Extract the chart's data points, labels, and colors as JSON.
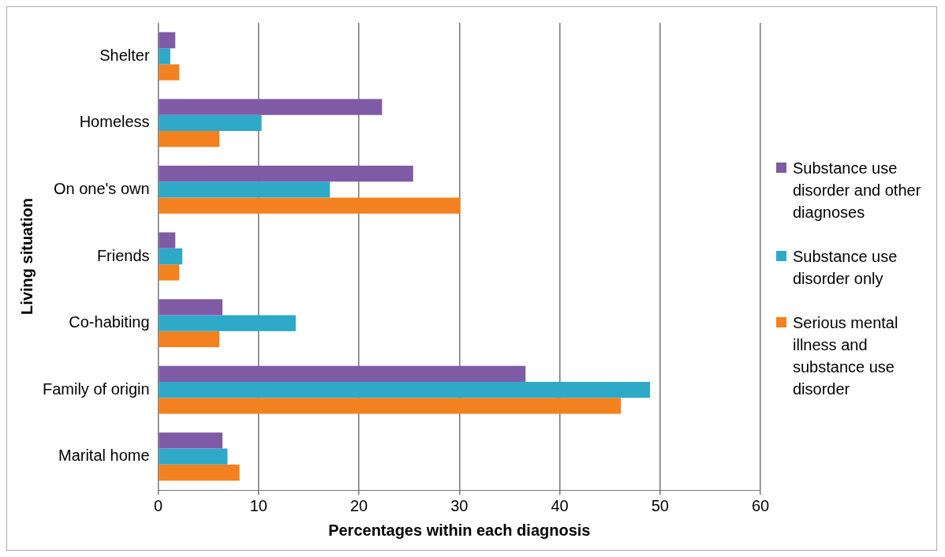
{
  "chart_data": {
    "type": "bar",
    "orientation": "horizontal",
    "xlabel": "Percentages within each diagnosis",
    "ylabel": "Living situation",
    "categories": [
      "Shelter",
      "Homeless",
      "On one's own",
      "Friends",
      "Co-habiting",
      "Family of origin",
      "Marital home"
    ],
    "series": [
      {
        "name": "Substance use disorder and other diagnoses",
        "color": "#7f5ba6",
        "values": [
          1.7,
          22.3,
          25.4,
          1.7,
          6.4,
          36.6,
          6.4
        ]
      },
      {
        "name": "Substance use disorder only",
        "color": "#2ea9c8",
        "values": [
          1.2,
          10.3,
          17.1,
          2.4,
          13.7,
          49.0,
          6.9
        ]
      },
      {
        "name": "Serious mental illness and substance use disorder",
        "color": "#f3811f",
        "values": [
          2.1,
          6.1,
          30.1,
          2.1,
          6.1,
          46.1,
          8.1
        ]
      }
    ],
    "xlim": [
      0,
      60
    ],
    "xticks": [
      0,
      10,
      20,
      30,
      40,
      50,
      60
    ],
    "grid": "x",
    "legend": "right"
  }
}
